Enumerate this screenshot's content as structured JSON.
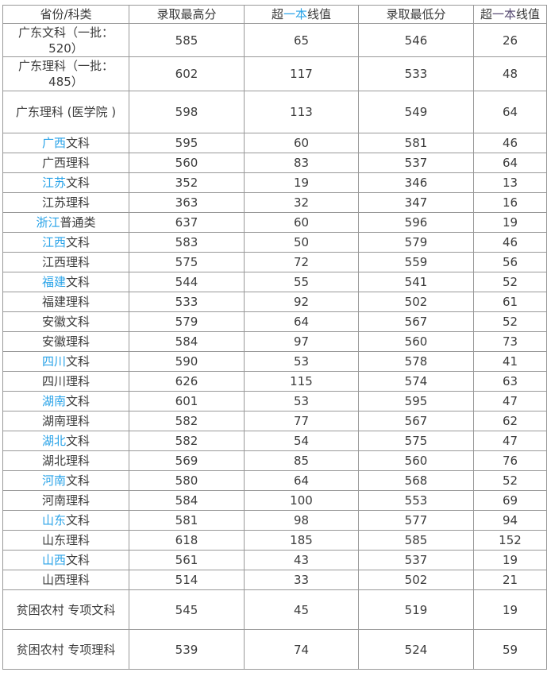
{
  "colors": {
    "text": "#3b3b3b",
    "border": "#999999",
    "link_blue": "#29a3e8",
    "visited_purple": "#564a72",
    "background": "#ffffff"
  },
  "table": {
    "header": [
      {
        "name": "header-province-subject",
        "parts": [
          {
            "text": "省份/科类"
          }
        ]
      },
      {
        "name": "header-max-score",
        "parts": [
          {
            "text": "录取最高分"
          }
        ]
      },
      {
        "name": "header-above-line-max",
        "parts": [
          {
            "text": "超"
          },
          {
            "text": "一本",
            "color": "blue"
          },
          {
            "text": "线值"
          }
        ]
      },
      {
        "name": "header-min-score",
        "parts": [
          {
            "text": "录取最低分"
          }
        ]
      },
      {
        "name": "header-above-line-min",
        "parts": [
          {
            "text": "超"
          },
          {
            "text": "一本",
            "color": "purple"
          },
          {
            "text": "线值"
          }
        ]
      }
    ],
    "rows": [
      {
        "rest": "广东文科（一批：520）",
        "values": [
          "585",
          "65",
          "546",
          "26"
        ]
      },
      {
        "rest": "广东理科（一批：485）",
        "values": [
          "602",
          "117",
          "533",
          "48"
        ]
      },
      {
        "rest": "广东理科 (医学院 )",
        "values": [
          "598",
          "113",
          "549",
          "64"
        ]
      },
      {
        "link": "广西",
        "rest": "文科",
        "values": [
          "595",
          "60",
          "581",
          "46"
        ]
      },
      {
        "rest": "广西理科",
        "values": [
          "560",
          "83",
          "537",
          "64"
        ]
      },
      {
        "link": "江苏",
        "rest": "文科",
        "values": [
          "352",
          "19",
          "346",
          "13"
        ]
      },
      {
        "rest": "江苏理科",
        "values": [
          "363",
          "32",
          "347",
          "16"
        ]
      },
      {
        "link": "浙江",
        "rest": "普通类",
        "values": [
          "637",
          "60",
          "596",
          "19"
        ]
      },
      {
        "link": "江西",
        "rest": "文科",
        "values": [
          "583",
          "50",
          "579",
          "46"
        ]
      },
      {
        "rest": "江西理科",
        "values": [
          "575",
          "72",
          "559",
          "56"
        ]
      },
      {
        "link": "福建",
        "rest": "文科",
        "values": [
          "544",
          "55",
          "541",
          "52"
        ]
      },
      {
        "rest": "福建理科",
        "values": [
          "533",
          "92",
          "502",
          "61"
        ]
      },
      {
        "rest": "安徽文科",
        "values": [
          "579",
          "64",
          "567",
          "52"
        ]
      },
      {
        "rest": "安徽理科",
        "values": [
          "584",
          "97",
          "560",
          "73"
        ]
      },
      {
        "link": "四川",
        "rest": "文科",
        "values": [
          "590",
          "53",
          "578",
          "41"
        ]
      },
      {
        "rest": "四川理科",
        "values": [
          "626",
          "115",
          "574",
          "63"
        ]
      },
      {
        "link": "湖南",
        "rest": "文科",
        "values": [
          "601",
          "53",
          "595",
          "47"
        ]
      },
      {
        "rest": "湖南理科",
        "values": [
          "582",
          "77",
          "567",
          "62"
        ]
      },
      {
        "link": "湖北",
        "rest": "文科",
        "values": [
          "582",
          "54",
          "575",
          "47"
        ]
      },
      {
        "rest": "湖北理科",
        "values": [
          "569",
          "85",
          "560",
          "76"
        ]
      },
      {
        "link": "河南",
        "rest": "文科",
        "values": [
          "580",
          "64",
          "568",
          "52"
        ]
      },
      {
        "rest": "河南理科",
        "values": [
          "584",
          "100",
          "553",
          "69"
        ]
      },
      {
        "link": "山东",
        "rest": "文科",
        "values": [
          "581",
          "98",
          "577",
          "94"
        ]
      },
      {
        "rest": "山东理科",
        "values": [
          "618",
          "185",
          "585",
          "152"
        ]
      },
      {
        "link": "山西",
        "rest": "文科",
        "values": [
          "561",
          "43",
          "537",
          "19"
        ]
      },
      {
        "rest": "山西理科",
        "values": [
          "514",
          "33",
          "502",
          "21"
        ]
      },
      {
        "rest": "贫困农村 专项文科",
        "values": [
          "545",
          "45",
          "519",
          "19"
        ]
      },
      {
        "rest": "贫困农村 专项理科",
        "values": [
          "539",
          "74",
          "524",
          "59"
        ]
      }
    ]
  },
  "chart_data": {
    "type": "table",
    "columns": [
      "省份/科类",
      "录取最高分",
      "超一本线值",
      "录取最低分",
      "超一本线值"
    ],
    "rows": [
      [
        "广东文科（一批：520）",
        585,
        65,
        546,
        26
      ],
      [
        "广东理科（一批：485）",
        602,
        117,
        533,
        48
      ],
      [
        "广东理科 (医学院 )",
        598,
        113,
        549,
        64
      ],
      [
        "广西文科",
        595,
        60,
        581,
        46
      ],
      [
        "广西理科",
        560,
        83,
        537,
        64
      ],
      [
        "江苏文科",
        352,
        19,
        346,
        13
      ],
      [
        "江苏理科",
        363,
        32,
        347,
        16
      ],
      [
        "浙江普通类",
        637,
        60,
        596,
        19
      ],
      [
        "江西文科",
        583,
        50,
        579,
        46
      ],
      [
        "江西理科",
        575,
        72,
        559,
        56
      ],
      [
        "福建文科",
        544,
        55,
        541,
        52
      ],
      [
        "福建理科",
        533,
        92,
        502,
        61
      ],
      [
        "安徽文科",
        579,
        64,
        567,
        52
      ],
      [
        "安徽理科",
        584,
        97,
        560,
        73
      ],
      [
        "四川文科",
        590,
        53,
        578,
        41
      ],
      [
        "四川理科",
        626,
        115,
        574,
        63
      ],
      [
        "湖南文科",
        601,
        53,
        595,
        47
      ],
      [
        "湖南理科",
        582,
        77,
        567,
        62
      ],
      [
        "湖北文科",
        582,
        54,
        575,
        47
      ],
      [
        "湖北理科",
        569,
        85,
        560,
        76
      ],
      [
        "河南文科",
        580,
        64,
        568,
        52
      ],
      [
        "河南理科",
        584,
        100,
        553,
        69
      ],
      [
        "山东文科",
        581,
        98,
        577,
        94
      ],
      [
        "山东理科",
        618,
        185,
        585,
        152
      ],
      [
        "山西文科",
        561,
        43,
        537,
        19
      ],
      [
        "山西理科",
        514,
        33,
        502,
        21
      ],
      [
        "贫困农村 专项文科",
        545,
        45,
        519,
        19
      ],
      [
        "贫困农村 专项理科",
        539,
        74,
        524,
        59
      ]
    ]
  }
}
